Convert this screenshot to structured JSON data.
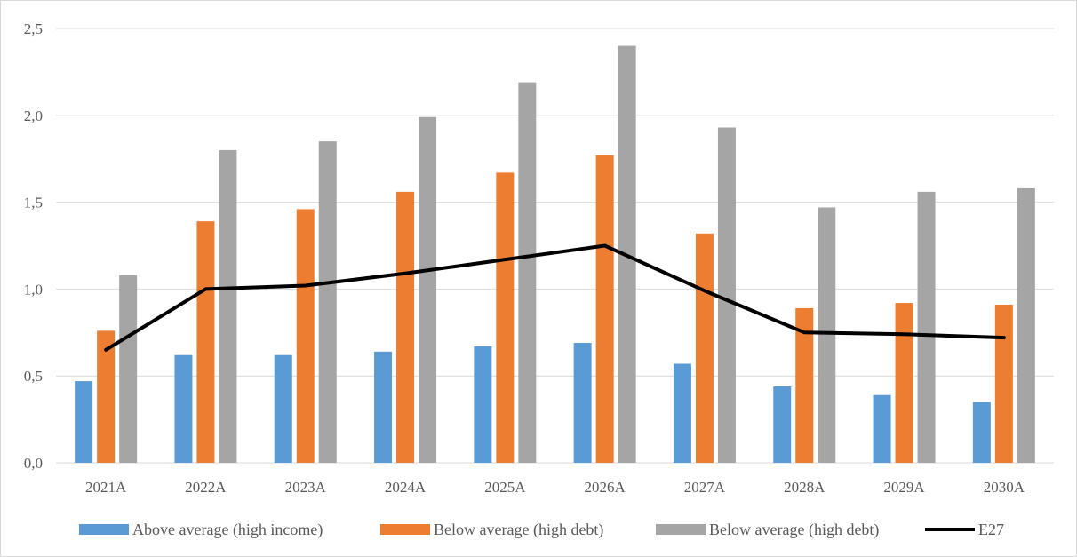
{
  "chart_data": {
    "type": "bar",
    "categories": [
      "2021A",
      "2022A",
      "2023A",
      "2024A",
      "2025A",
      "2026A",
      "2027A",
      "2028A",
      "2029A",
      "2030A"
    ],
    "ylim": [
      0,
      2.5
    ],
    "yticks": [
      "0,0",
      "0,5",
      "1,0",
      "1,5",
      "2,0",
      "2,5"
    ],
    "ytick_values": [
      0,
      0.5,
      1.0,
      1.5,
      2.0,
      2.5
    ],
    "grid": true,
    "legend_position": "bottom",
    "series": [
      {
        "name": "Above average (high income)",
        "kind": "bar",
        "color": "#5b9bd5",
        "values": [
          0.47,
          0.62,
          0.62,
          0.64,
          0.67,
          0.69,
          0.57,
          0.44,
          0.39,
          0.35
        ]
      },
      {
        "name": "Below average (high debt)",
        "kind": "bar",
        "color": "#ed7d31",
        "values": [
          0.76,
          1.39,
          1.46,
          1.56,
          1.67,
          1.77,
          1.32,
          0.89,
          0.92,
          0.91
        ]
      },
      {
        "name": "Below average (high debt)",
        "kind": "bar",
        "color": "#a5a5a5",
        "values": [
          1.08,
          1.8,
          1.85,
          1.99,
          2.19,
          2.4,
          1.93,
          1.47,
          1.56,
          1.58
        ]
      },
      {
        "name": "E27",
        "kind": "line",
        "color": "#000000",
        "values": [
          0.65,
          1.0,
          1.02,
          1.09,
          1.17,
          1.25,
          0.99,
          0.75,
          0.74,
          0.72
        ]
      }
    ]
  }
}
